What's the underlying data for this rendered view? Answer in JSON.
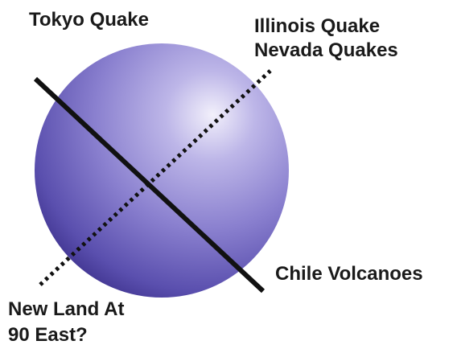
{
  "labels": {
    "tokyo": "Tokyo Quake",
    "illinois": "Illinois Quake",
    "nevada": "Nevada Quakes",
    "chile": "Chile Volcanoes",
    "new_land_line1": "New Land At",
    "new_land_line2": "90 East?"
  },
  "colors": {
    "globe_light": "#f2f0fb",
    "globe_mid": "#8a80cf",
    "globe_dark": "#3b2f8a",
    "line": "#111111",
    "text": "#1a1a1a"
  },
  "icons": {
    "globe": "sphere",
    "solid_axis": "solid-line",
    "dotted_axis": "dotted-line"
  }
}
